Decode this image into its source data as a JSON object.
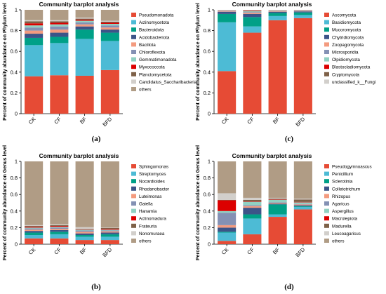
{
  "chart_data": [
    {
      "type": "bar",
      "stacked": true,
      "panel_label": "(a)",
      "title": "Community barplot analysis",
      "ylabel": "Percent of community abundance on Phylum level",
      "xlabel": "",
      "ylim": [
        0,
        1
      ],
      "yticks": [
        "0",
        "0.2",
        "0.4",
        "0.6",
        "0.8",
        "1"
      ],
      "categories": [
        "CK",
        "CF",
        "BF",
        "BFD"
      ],
      "legend_position": "right",
      "series": [
        {
          "name": "Pseudomonadota",
          "color": "#e64b35",
          "values": [
            0.36,
            0.37,
            0.365,
            0.42
          ]
        },
        {
          "name": "Actinomycetota",
          "color": "#4dbbd5",
          "values": [
            0.3,
            0.31,
            0.355,
            0.28
          ]
        },
        {
          "name": "Bacteroidota",
          "color": "#00a087",
          "values": [
            0.07,
            0.06,
            0.09,
            0.08
          ]
        },
        {
          "name": "Acidobacteriota",
          "color": "#3c5488",
          "values": [
            0.04,
            0.04,
            0.03,
            0.03
          ]
        },
        {
          "name": "Bacillota",
          "color": "#f39b7f",
          "values": [
            0.03,
            0.03,
            0.02,
            0.02
          ]
        },
        {
          "name": "Chloroflexota",
          "color": "#8491b4",
          "values": [
            0.03,
            0.03,
            0.02,
            0.02
          ]
        },
        {
          "name": "Gemmatimonadota",
          "color": "#91d1c2",
          "values": [
            0.02,
            0.02,
            0.015,
            0.015
          ]
        },
        {
          "name": "Myxococcota",
          "color": "#dc0000",
          "values": [
            0.02,
            0.015,
            0.01,
            0.01
          ]
        },
        {
          "name": "Planctomycetota",
          "color": "#7e6148",
          "values": [
            0.02,
            0.015,
            0.01,
            0.01
          ]
        },
        {
          "name": "Candidatus_Saccharibacteria",
          "color": "#d2cfcb",
          "values": [
            0.01,
            0.01,
            0.01,
            0.01
          ]
        },
        {
          "name": "others",
          "color": "#b09c85",
          "values": [
            0.1,
            0.1,
            0.075,
            0.105
          ]
        }
      ]
    },
    {
      "type": "bar",
      "stacked": true,
      "panel_label": "(c)",
      "title": "Community barplot analysis",
      "ylabel": "Percent of community abundance on Phylum level",
      "xlabel": "",
      "ylim": [
        0,
        1
      ],
      "yticks": [
        "0",
        "0.2",
        "0.4",
        "0.6",
        "0.8",
        "1"
      ],
      "categories": [
        "CK",
        "CF",
        "BF",
        "BFD"
      ],
      "legend_position": "right",
      "series": [
        {
          "name": "Ascomycota",
          "color": "#e64b35",
          "values": [
            0.41,
            0.78,
            0.9,
            0.92
          ]
        },
        {
          "name": "Basidiomycota",
          "color": "#4dbbd5",
          "values": [
            0.47,
            0.06,
            0.04,
            0.03
          ]
        },
        {
          "name": "Mucoromycota",
          "color": "#00a087",
          "values": [
            0.08,
            0.09,
            0.03,
            0.025
          ]
        },
        {
          "name": "Chytridiomycota",
          "color": "#3c5488",
          "values": [
            0.02,
            0.03,
            0.01,
            0.01
          ]
        },
        {
          "name": "Zoopagomycota",
          "color": "#f39b7f",
          "values": [
            0.004,
            0.01,
            0.004,
            0.003
          ]
        },
        {
          "name": "Microsporidia",
          "color": "#8491b4",
          "values": [
            0.004,
            0.008,
            0.003,
            0.003
          ]
        },
        {
          "name": "Olpidiomycota",
          "color": "#91d1c2",
          "values": [
            0.003,
            0.008,
            0.003,
            0.003
          ]
        },
        {
          "name": "Blastocladiomycota",
          "color": "#dc0000",
          "values": [
            0.002,
            0.004,
            0.002,
            0.002
          ]
        },
        {
          "name": "Cryptomycota",
          "color": "#7e6148",
          "values": [
            0.002,
            0.004,
            0.002,
            0.002
          ]
        },
        {
          "name": "unclassified_k__Fungi",
          "color": "#d2cfcb",
          "values": [
            0.005,
            0.006,
            0.006,
            0.002
          ]
        }
      ]
    },
    {
      "type": "bar",
      "stacked": true,
      "panel_label": "(b)",
      "title": "Community barplot analysis",
      "ylabel": "Percent of community abundance on Genus level",
      "xlabel": "",
      "ylim": [
        0,
        1
      ],
      "yticks": [
        "0",
        "0.2",
        "0.4",
        "0.6",
        "0.8",
        "1"
      ],
      "categories": [
        "CK",
        "CF",
        "BF",
        "BFD"
      ],
      "legend_position": "right",
      "series": [
        {
          "name": "Sphingomonas",
          "color": "#e64b35",
          "values": [
            0.07,
            0.07,
            0.05,
            0.05
          ]
        },
        {
          "name": "Streptomyces",
          "color": "#4dbbd5",
          "values": [
            0.04,
            0.05,
            0.04,
            0.04
          ]
        },
        {
          "name": "Nocardioides",
          "color": "#00a087",
          "values": [
            0.03,
            0.03,
            0.02,
            0.03
          ]
        },
        {
          "name": "Rhodanobacter",
          "color": "#3c5488",
          "values": [
            0.02,
            0.02,
            0.02,
            0.02
          ]
        },
        {
          "name": "Luteimonas",
          "color": "#f39b7f",
          "values": [
            0.015,
            0.015,
            0.02,
            0.015
          ]
        },
        {
          "name": "Gaiella",
          "color": "#8491b4",
          "values": [
            0.015,
            0.015,
            0.015,
            0.01
          ]
        },
        {
          "name": "Hanamia",
          "color": "#91d1c2",
          "values": [
            0.01,
            0.01,
            0.01,
            0.01
          ]
        },
        {
          "name": "Actinomadura",
          "color": "#dc0000",
          "values": [
            0.01,
            0.01,
            0.005,
            0.01
          ]
        },
        {
          "name": "Frateuria",
          "color": "#7e6148",
          "values": [
            0.01,
            0.01,
            0.005,
            0.01
          ]
        },
        {
          "name": "Nonomuraea",
          "color": "#d2cfcb",
          "values": [
            0.01,
            0.01,
            0.02,
            0.005
          ]
        },
        {
          "name": "others",
          "color": "#b09c85",
          "values": [
            0.77,
            0.76,
            0.795,
            0.8
          ]
        }
      ]
    },
    {
      "type": "bar",
      "stacked": true,
      "panel_label": "(d)",
      "title": "Community barplot analysis",
      "ylabel": "Percent of community abundance on Genus level",
      "xlabel": "",
      "ylim": [
        0,
        1
      ],
      "yticks": [
        "0",
        "0.2",
        "0.4",
        "0.6",
        "0.8",
        "1"
      ],
      "categories": [
        "CK",
        "CF",
        "BF",
        "BFD"
      ],
      "legend_position": "right",
      "series": [
        {
          "name": "Pseudogymnoascus",
          "color": "#e64b35",
          "values": [
            0.04,
            0.12,
            0.33,
            0.42
          ]
        },
        {
          "name": "Penicillium",
          "color": "#4dbbd5",
          "values": [
            0.1,
            0.19,
            0.03,
            0.03
          ]
        },
        {
          "name": "Sclerotinia",
          "color": "#00a087",
          "values": [
            0.01,
            0.05,
            0.12,
            0.01
          ]
        },
        {
          "name": "Colletotrichum",
          "color": "#3c5488",
          "values": [
            0.05,
            0.08,
            0.01,
            0.01
          ]
        },
        {
          "name": "Rhizopus",
          "color": "#f39b7f",
          "values": [
            0.03,
            0.02,
            0.01,
            0.01
          ]
        },
        {
          "name": "Agaricus",
          "color": "#8491b4",
          "values": [
            0.15,
            0.01,
            0.005,
            0.005
          ]
        },
        {
          "name": "Aspergillus",
          "color": "#91d1c2",
          "values": [
            0.02,
            0.04,
            0.03,
            0.02
          ]
        },
        {
          "name": "Macrolepiota",
          "color": "#dc0000",
          "values": [
            0.13,
            0.005,
            0.005,
            0.005
          ]
        },
        {
          "name": "Madurella",
          "color": "#7e6148",
          "values": [
            0.005,
            0.02,
            0.01,
            0.03
          ]
        },
        {
          "name": "Leucoagaricus",
          "color": "#d2cfcb",
          "values": [
            0.08,
            0.025,
            0.01,
            0.01
          ]
        },
        {
          "name": "others",
          "color": "#b09c85",
          "values": [
            0.385,
            0.44,
            0.44,
            0.45
          ]
        }
      ]
    }
  ]
}
